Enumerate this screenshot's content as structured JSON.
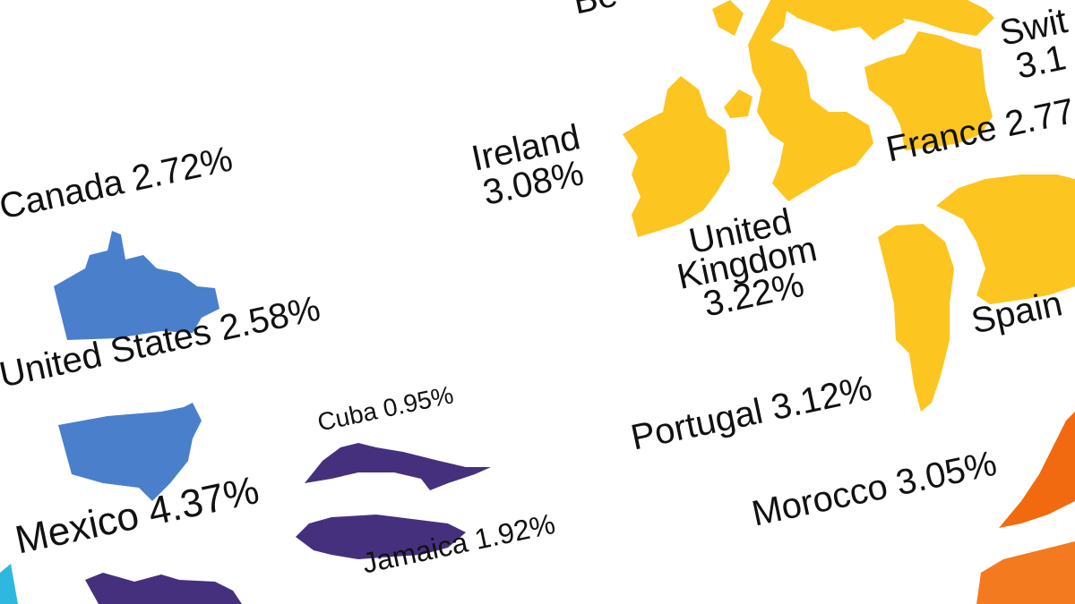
{
  "colors": {
    "europe": "#FCC520",
    "north_america": "#4A7FCB",
    "caribbean_mexico": "#45307E",
    "africa": "#F26A10",
    "corner_accent": "#2EB8E0"
  },
  "labels": {
    "canada": "Canada 2.72%",
    "united_states": "United States 2.58%",
    "mexico": "Mexico 4.37%",
    "cuba": "Cuba 0.95%",
    "jamaica": "Jamaica 1.92%",
    "ireland": [
      "Ireland",
      "3.08%"
    ],
    "united_kingdom": [
      "United",
      "Kingdom",
      "3.22%"
    ],
    "france": "France 2.77",
    "switzerland": [
      "Swit",
      "3.1"
    ],
    "spain": "Spain",
    "portugal": "Portugal 3.12%",
    "morocco": "Morocco 3.05%",
    "top_partial": "Be"
  }
}
